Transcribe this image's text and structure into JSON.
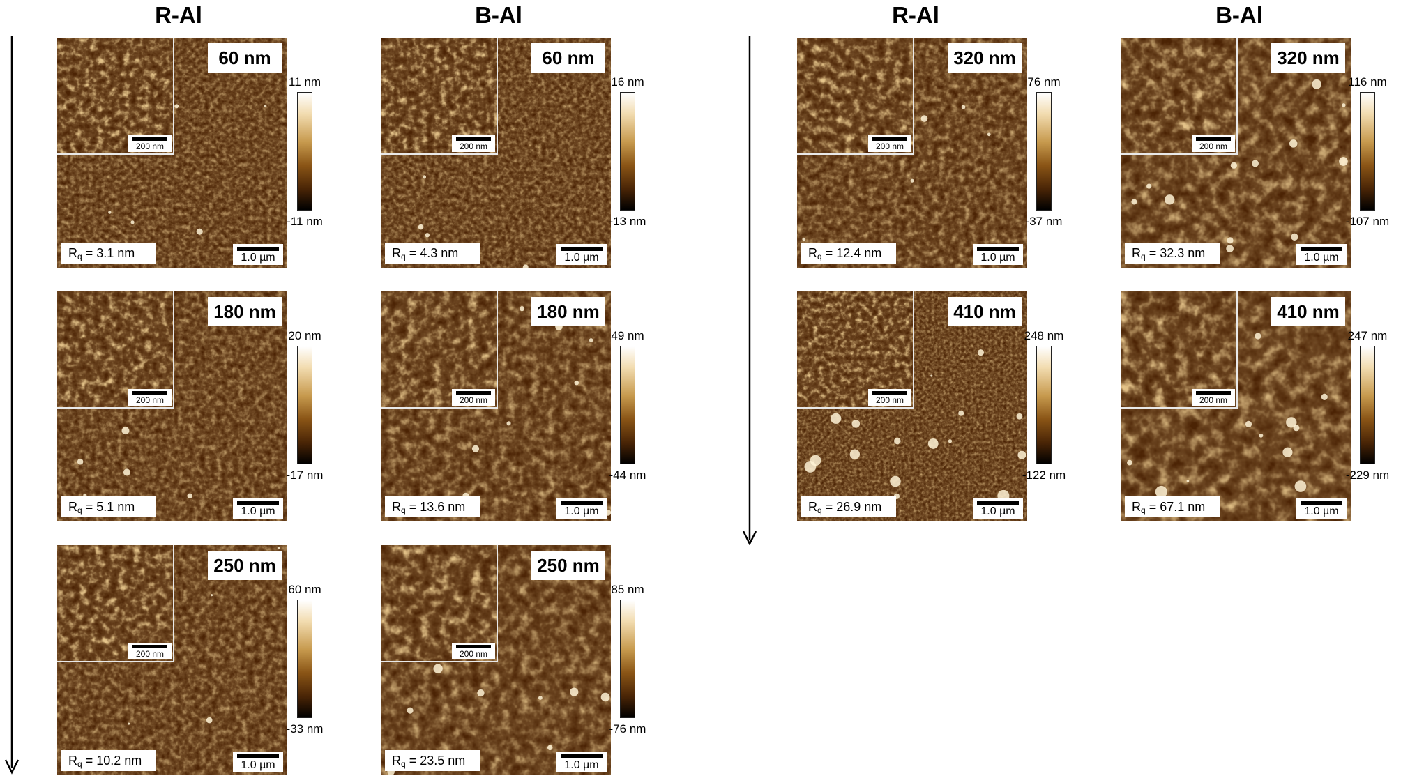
{
  "headers": [
    "R-Al",
    "B-Al",
    "R-Al",
    "B-Al"
  ],
  "inset_scale_label": "200 nm",
  "scalebar_label": "1.0 µm",
  "rq_prefix": "R",
  "rq_sub": "q",
  "panels": [
    {
      "thickness": "60 nm",
      "rq_value": " = 3.1 nm",
      "cbar_max": "11 nm",
      "cbar_min": "-11 nm"
    },
    {
      "thickness": "60 nm",
      "rq_value": " = 4.3 nm",
      "cbar_max": "16 nm",
      "cbar_min": "-13 nm"
    },
    {
      "thickness": "180 nm",
      "rq_value": " = 5.1 nm",
      "cbar_max": "20 nm",
      "cbar_min": "-17 nm"
    },
    {
      "thickness": "180 nm",
      "rq_value": " = 13.6 nm",
      "cbar_max": "49 nm",
      "cbar_min": "-44 nm"
    },
    {
      "thickness": "250 nm",
      "rq_value": " = 10.2 nm",
      "cbar_max": "60 nm",
      "cbar_min": "-33 nm"
    },
    {
      "thickness": "250 nm",
      "rq_value": " = 23.5 nm",
      "cbar_max": "85 nm",
      "cbar_min": "-76 nm"
    },
    {
      "thickness": "320 nm",
      "rq_value": " = 12.4 nm",
      "cbar_max": "76 nm",
      "cbar_min": "-37 nm"
    },
    {
      "thickness": "320 nm",
      "rq_value": " = 32.3 nm",
      "cbar_max": "116 nm",
      "cbar_min": "-107 nm"
    },
    {
      "thickness": "410 nm",
      "rq_value": " = 26.9 nm",
      "cbar_max": "248 nm",
      "cbar_min": "-122 nm"
    },
    {
      "thickness": "410 nm",
      "rq_value": " = 67.1 nm",
      "cbar_max": "247 nm",
      "cbar_min": "-229 nm"
    }
  ],
  "colors": {
    "surface_dark": "#3d1c03",
    "surface_mid": "#7a4310",
    "surface_light": "#c8923f",
    "highlight": "#fff3d6"
  }
}
